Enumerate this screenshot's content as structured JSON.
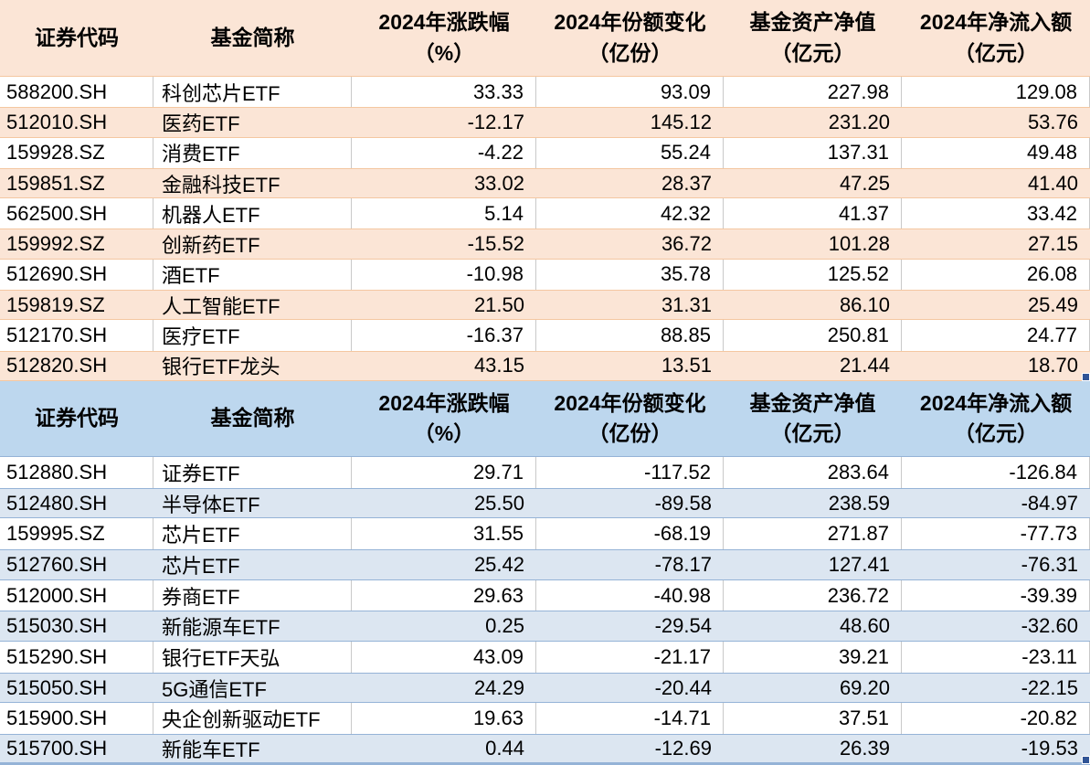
{
  "columns": [
    {
      "title": "证券代码",
      "sub": ""
    },
    {
      "title": "基金简称",
      "sub": ""
    },
    {
      "title": "2024年涨跌幅",
      "sub": "（%）"
    },
    {
      "title": "2024年份额变化",
      "sub": "（亿份）"
    },
    {
      "title": "基金资产净值",
      "sub": "（亿元）"
    },
    {
      "title": "2024年净流入额",
      "sub": "（亿元）"
    }
  ],
  "inflow_table": {
    "rows": [
      [
        "588200.SH",
        "科创芯片ETF",
        "33.33",
        "93.09",
        "227.98",
        "129.08"
      ],
      [
        "512010.SH",
        "医药ETF",
        "-12.17",
        "145.12",
        "231.20",
        "53.76"
      ],
      [
        "159928.SZ",
        "消费ETF",
        "-4.22",
        "55.24",
        "137.31",
        "49.48"
      ],
      [
        "159851.SZ",
        "金融科技ETF",
        "33.02",
        "28.37",
        "47.25",
        "41.40"
      ],
      [
        "562500.SH",
        "机器人ETF",
        "5.14",
        "42.32",
        "41.37",
        "33.42"
      ],
      [
        "159992.SZ",
        "创新药ETF",
        "-15.52",
        "36.72",
        "101.28",
        "27.15"
      ],
      [
        "512690.SH",
        "酒ETF",
        "-10.98",
        "35.78",
        "125.52",
        "26.08"
      ],
      [
        "159819.SZ",
        "人工智能ETF",
        "21.50",
        "31.31",
        "86.10",
        "25.49"
      ],
      [
        "512170.SH",
        "医疗ETF",
        "-16.37",
        "88.85",
        "250.81",
        "24.77"
      ],
      [
        "512820.SH",
        "银行ETF龙头",
        "43.15",
        "13.51",
        "21.44",
        "18.70"
      ]
    ]
  },
  "outflow_table": {
    "rows": [
      [
        "512880.SH",
        "证券ETF",
        "29.71",
        "-117.52",
        "283.64",
        "-126.84"
      ],
      [
        "512480.SH",
        "半导体ETF",
        "25.50",
        "-89.58",
        "238.59",
        "-84.97"
      ],
      [
        "159995.SZ",
        "芯片ETF",
        "31.55",
        "-68.19",
        "271.87",
        "-77.73"
      ],
      [
        "512760.SH",
        "芯片ETF",
        "25.42",
        "-78.17",
        "127.41",
        "-76.31"
      ],
      [
        "512000.SH",
        "券商ETF",
        "29.63",
        "-40.98",
        "236.72",
        "-39.39"
      ],
      [
        "515030.SH",
        "新能源车ETF",
        "0.25",
        "-29.54",
        "48.60",
        "-32.60"
      ],
      [
        "515290.SH",
        "银行ETF天弘",
        "43.09",
        "-21.17",
        "39.21",
        "-23.11"
      ],
      [
        "515050.SH",
        "5G通信ETF",
        "24.29",
        "-20.44",
        "69.20",
        "-22.15"
      ],
      [
        "515900.SH",
        "央企创新驱动ETF",
        "19.63",
        "-14.71",
        "37.51",
        "-20.82"
      ],
      [
        "515700.SH",
        "新能车ETF",
        "0.44",
        "-12.69",
        "26.39",
        "-19.53"
      ]
    ]
  },
  "colors": {
    "orange_header": "#FBE5D6",
    "orange_stripe": "#FBE5D6",
    "orange_border": "#F4C7A1",
    "blue_header": "#BDD7EE",
    "blue_stripe": "#DCE6F1",
    "blue_border": "#95B3D7",
    "gridline": "#C9C9C9",
    "fill_handle": "#305496",
    "text": "#000000"
  }
}
